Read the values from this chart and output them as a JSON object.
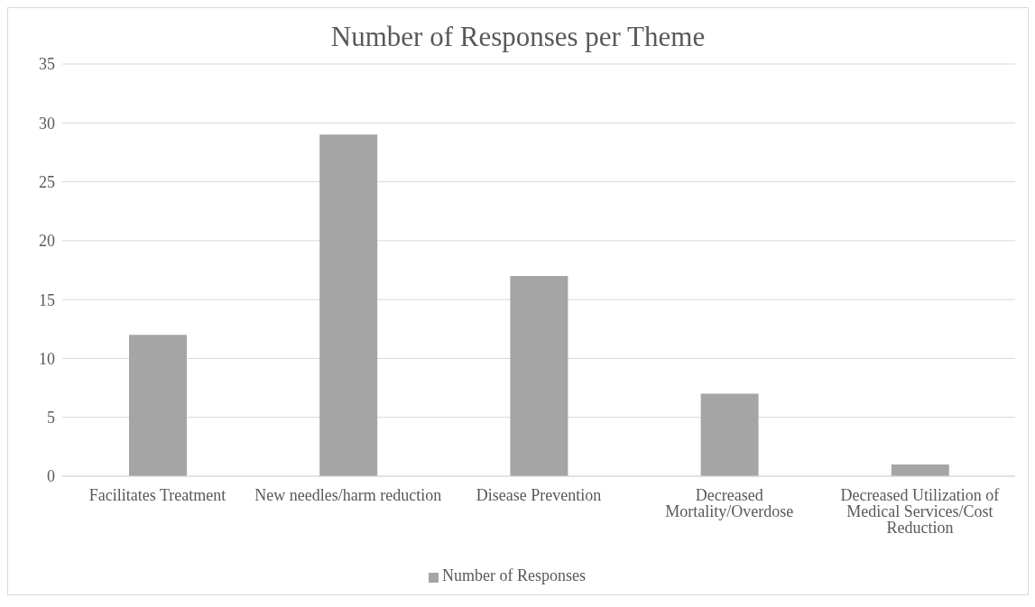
{
  "chart_data": {
    "type": "bar",
    "title": "Number of Responses per Theme",
    "categories": [
      "Facilitates Treatment",
      "New needles/harm reduction",
      "Disease Prevention",
      "Decreased Mortality/Overdose",
      "Decreased Utilization of Medical Services/Cost Reduction"
    ],
    "series": [
      {
        "name": "Number of Responses",
        "color": "#a5a5a5",
        "values": [
          12,
          29,
          17,
          7,
          1
        ]
      }
    ],
    "ylim": [
      0,
      35
    ],
    "yticks": [
      0,
      5,
      10,
      15,
      20,
      25,
      30,
      35
    ],
    "grid": "y",
    "legend": "bottom"
  }
}
